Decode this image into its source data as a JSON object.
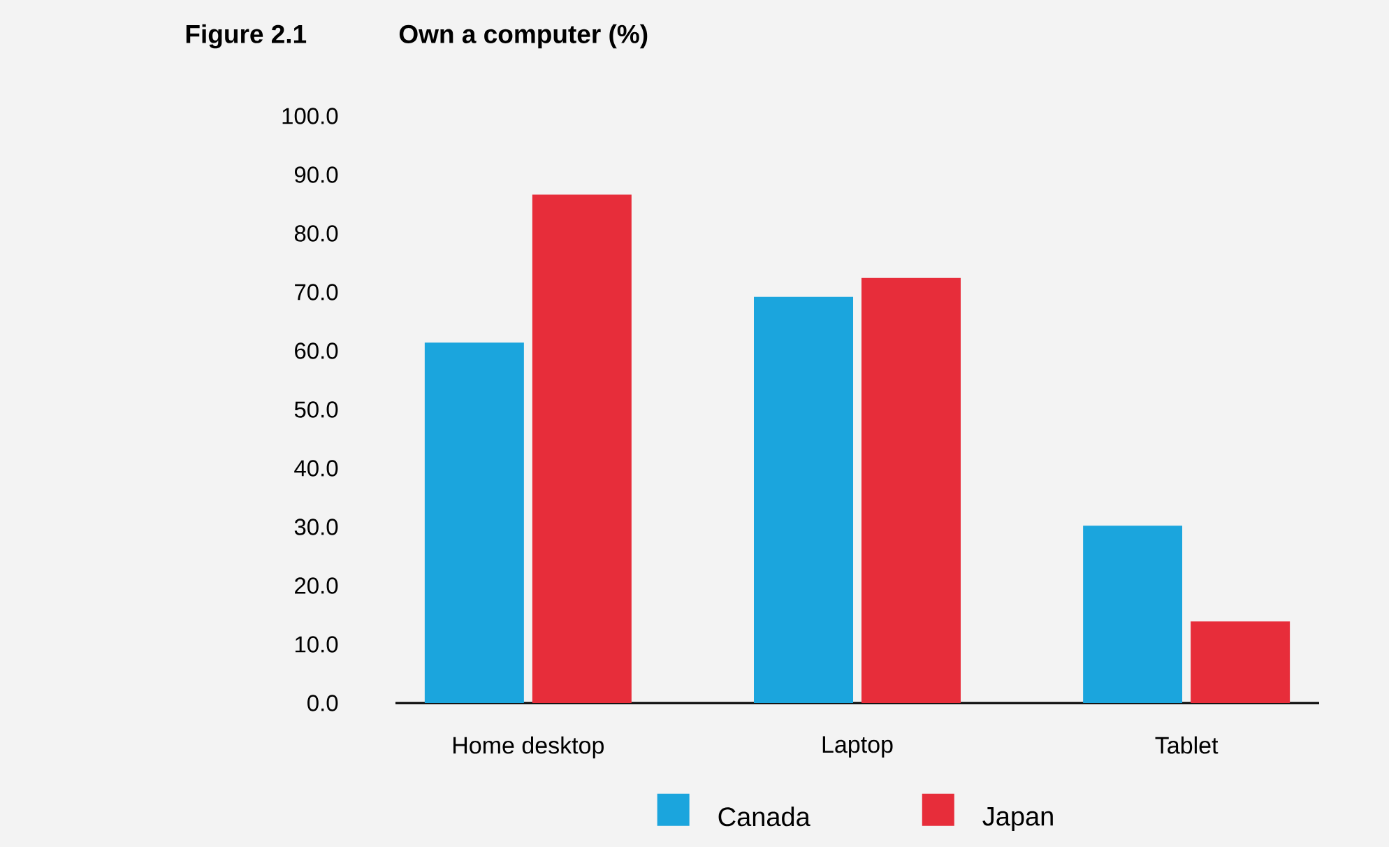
{
  "chart_data": {
    "type": "bar",
    "title": "Own a computer (%)",
    "annotations": [
      "Figure 2.1"
    ],
    "categories": [
      "Home desktop",
      "Laptop",
      "Tablet"
    ],
    "series": [
      {
        "name": "Canada",
        "color": "#1ba5dd",
        "values": [
          61.4,
          69.2,
          30.2
        ]
      },
      {
        "name": "Japan",
        "color": "#e72d3a",
        "values": [
          86.6,
          72.4,
          13.9
        ]
      }
    ],
    "ylim": [
      0,
      100
    ],
    "yticks": [
      {
        "value": 0,
        "label": "0.0"
      },
      {
        "value": 10,
        "label": "10.0"
      },
      {
        "value": 20,
        "label": "20.0"
      },
      {
        "value": 30,
        "label": "30.0"
      },
      {
        "value": 40,
        "label": "40.0"
      },
      {
        "value": 50,
        "label": "50.0"
      },
      {
        "value": 60,
        "label": "60.0"
      },
      {
        "value": 70,
        "label": "70.0"
      },
      {
        "value": 80,
        "label": "80.0"
      },
      {
        "value": 90,
        "label": "90.0"
      },
      {
        "value": 100,
        "label": "100.0"
      }
    ],
    "legend": "bottom"
  }
}
